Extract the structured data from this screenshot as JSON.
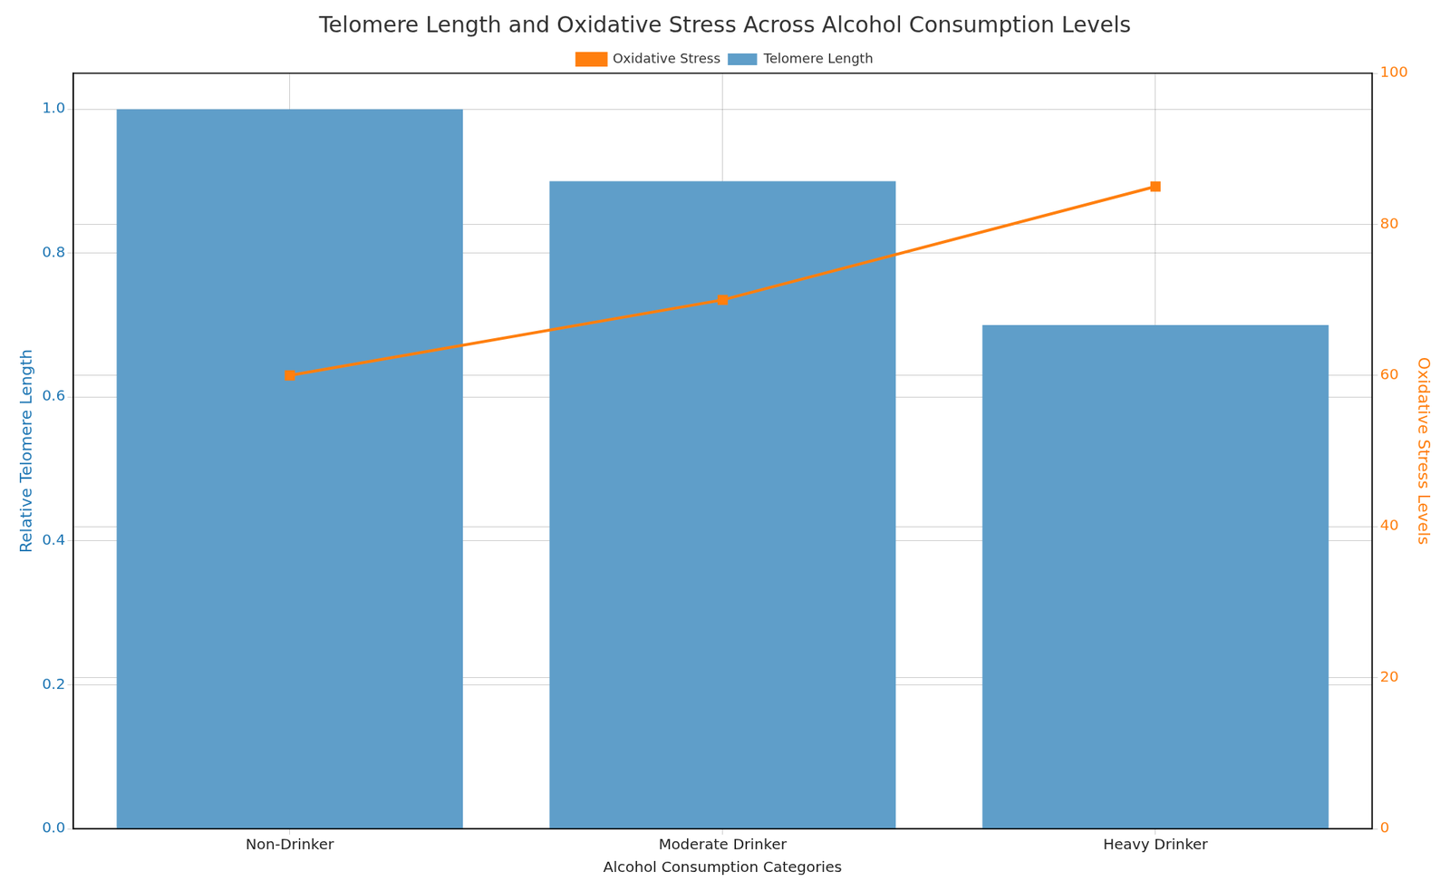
{
  "chart_data": {
    "type": "bar",
    "title": "Telomere Length and Oxidative Stress Across Alcohol Consumption Levels",
    "x_label": "Alcohol Consumption Categories",
    "y_label": "Relative Telomere Length",
    "y2_label": "Oxidative Stress Levels",
    "categories": [
      "Non-Drinker",
      "Moderate Drinker",
      "Heavy Drinker"
    ],
    "series": [
      {
        "name": "Telomere Length",
        "type": "bar",
        "color": "#5f9ec9",
        "values": [
          1.0,
          0.9,
          0.7
        ]
      },
      {
        "name": "Oxidative Stress",
        "type": "line",
        "axis": "y2",
        "color": "#ff7f0e",
        "marker": "square",
        "line_style": "solid",
        "values": [
          60,
          70,
          85
        ]
      }
    ],
    "ylim": [
      0,
      1.05
    ],
    "yticks": [
      {
        "value": 0,
        "label": "0.0"
      },
      0.2,
      0.4,
      0.6,
      0.8,
      {
        "value": 1,
        "label": "1.0"
      }
    ],
    "y2lim": [
      0,
      100
    ],
    "y2ticks": [
      0,
      20,
      40,
      60,
      80,
      100
    ],
    "grid": true,
    "legend": "top"
  }
}
